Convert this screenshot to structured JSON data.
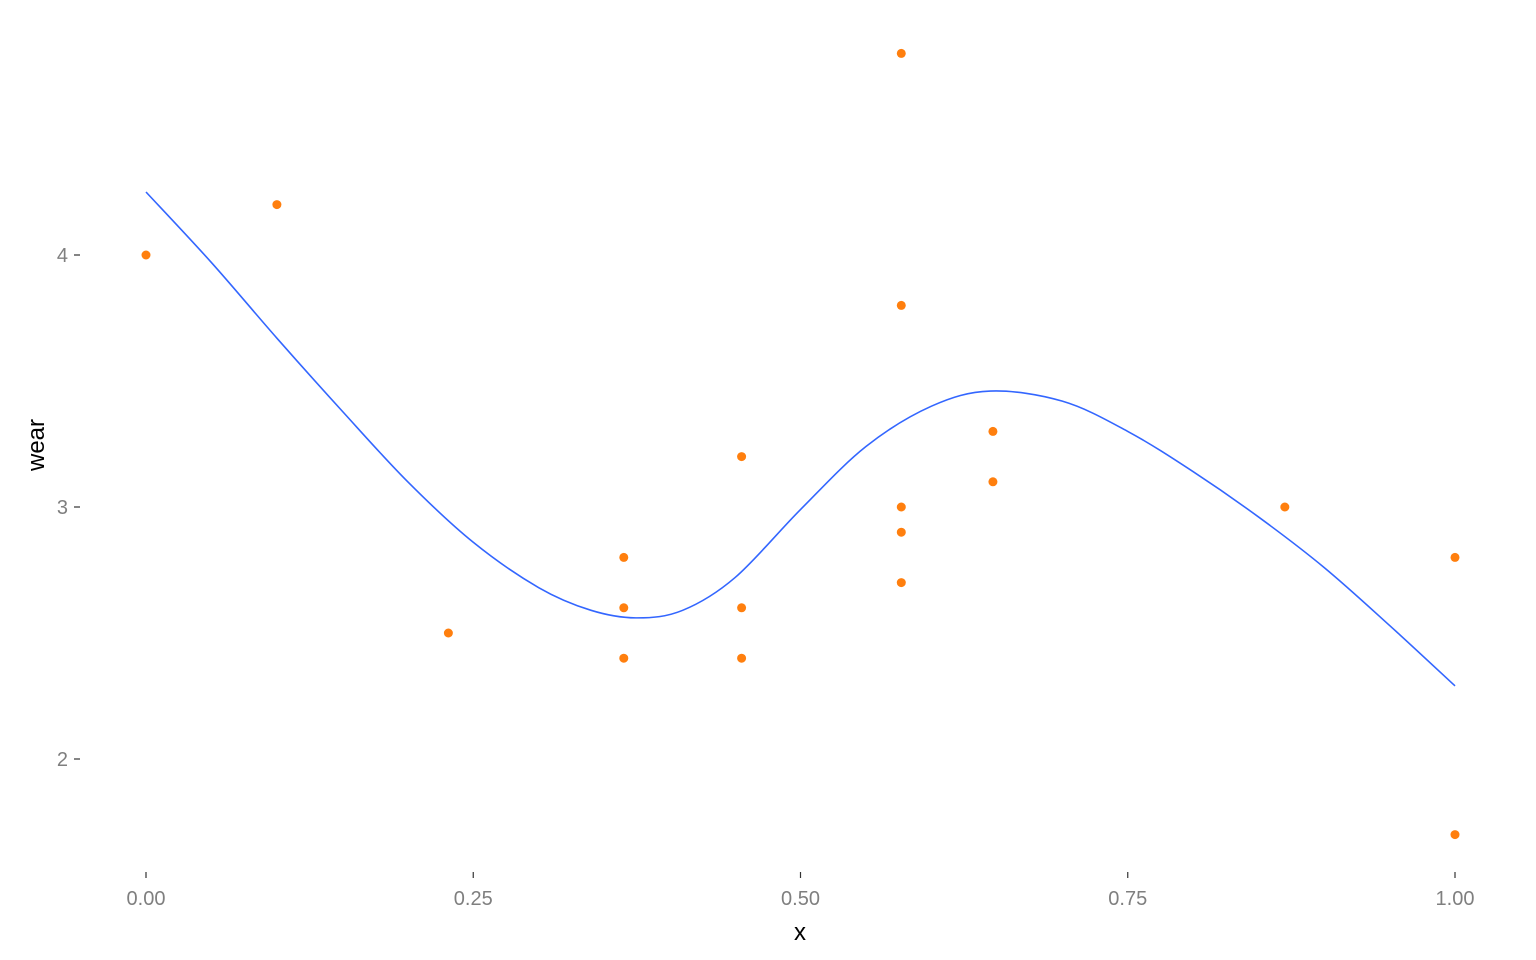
{
  "chart_data": {
    "type": "scatter",
    "title": "",
    "xlabel": "x",
    "ylabel": "wear",
    "xlim": [
      -0.05,
      1.05
    ],
    "ylim": [
      1.57,
      4.85
    ],
    "x_ticks": [
      0.0,
      0.25,
      0.5,
      0.75,
      1.0
    ],
    "x_tick_labels": [
      "0.00",
      "0.25",
      "0.50",
      "0.75",
      "1.00"
    ],
    "y_ticks": [
      2,
      3,
      4
    ],
    "y_tick_labels": [
      "2",
      "3",
      "4"
    ],
    "grid": false,
    "legend": "none",
    "series": [
      {
        "type": "scatter",
        "color": "#ff7f0e",
        "points": [
          [
            0.0,
            4.0
          ],
          [
            0.1,
            4.2
          ],
          [
            0.231,
            2.5
          ],
          [
            0.365,
            2.8
          ],
          [
            0.365,
            2.6
          ],
          [
            0.365,
            2.4
          ],
          [
            0.455,
            3.2
          ],
          [
            0.455,
            2.6
          ],
          [
            0.455,
            2.4
          ],
          [
            0.577,
            4.8
          ],
          [
            0.577,
            3.8
          ],
          [
            0.577,
            3.0
          ],
          [
            0.577,
            2.9
          ],
          [
            0.577,
            2.7
          ],
          [
            0.647,
            3.3
          ],
          [
            0.647,
            3.1
          ],
          [
            0.87,
            3.0
          ],
          [
            1.0,
            2.8
          ],
          [
            1.0,
            1.7
          ]
        ]
      },
      {
        "type": "line",
        "color": "#3366ff",
        "points": [
          [
            0.0,
            4.25
          ],
          [
            0.05,
            3.97
          ],
          [
            0.1,
            3.67
          ],
          [
            0.15,
            3.38
          ],
          [
            0.2,
            3.1
          ],
          [
            0.25,
            2.86
          ],
          [
            0.3,
            2.68
          ],
          [
            0.34,
            2.59
          ],
          [
            0.375,
            2.56
          ],
          [
            0.41,
            2.59
          ],
          [
            0.45,
            2.72
          ],
          [
            0.5,
            2.99
          ],
          [
            0.55,
            3.24
          ],
          [
            0.6,
            3.4
          ],
          [
            0.645,
            3.46
          ],
          [
            0.7,
            3.42
          ],
          [
            0.75,
            3.3
          ],
          [
            0.8,
            3.14
          ],
          [
            0.85,
            2.96
          ],
          [
            0.9,
            2.76
          ],
          [
            0.95,
            2.53
          ],
          [
            1.0,
            2.29
          ]
        ]
      }
    ]
  }
}
